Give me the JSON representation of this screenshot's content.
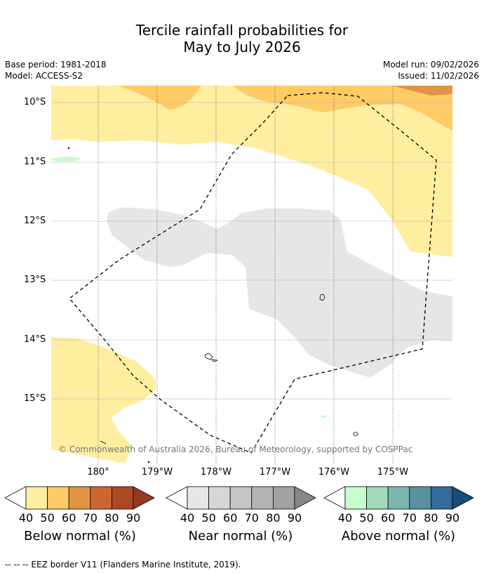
{
  "title": {
    "line1": "Tercile rainfall probabilities for",
    "line2": "May to July 2026"
  },
  "meta": {
    "base_period": "Base period: 1981-2018",
    "model": "Model: ACCESS-S2",
    "model_run": "Model run: 09/02/2026",
    "issued": "Issued: 11/02/2026"
  },
  "map": {
    "copyright": "© Commonwealth of Australia 2026, Bureau of Meteorology, supported by COSPPac",
    "lat_labels": [
      "10°S",
      "11°S",
      "12°S",
      "13°S",
      "14°S",
      "15°S"
    ],
    "lon_labels": [
      "180°",
      "179°W",
      "178°W",
      "177°W",
      "176°W",
      "175°W"
    ]
  },
  "colorbars": [
    {
      "label": "Below normal (%)",
      "ticks": [
        "40",
        "50",
        "60",
        "70",
        "80",
        "90"
      ],
      "colors": [
        "#ffeda0",
        "#fecb65",
        "#e19446",
        "#cd6533",
        "#aa4a25",
        "#983722"
      ]
    },
    {
      "label": "Near normal (%)",
      "ticks": [
        "40",
        "50",
        "60",
        "70",
        "80",
        "90"
      ],
      "colors": [
        "#e6e6e6",
        "#d6d6d6",
        "#c6c6c6",
        "#b4b4b4",
        "#a2a2a2",
        "#878787"
      ]
    },
    {
      "label": "Above normal (%)",
      "ticks": [
        "40",
        "50",
        "60",
        "70",
        "80",
        "90"
      ],
      "colors": [
        "#c7fccb",
        "#a3d8bd",
        "#7db5b0",
        "#5991a3",
        "#356a9c",
        "#1a4a7e"
      ]
    }
  ],
  "footnote": "--  --  -- EEZ border V11 (Flanders Marine Institute, 2019)."
}
